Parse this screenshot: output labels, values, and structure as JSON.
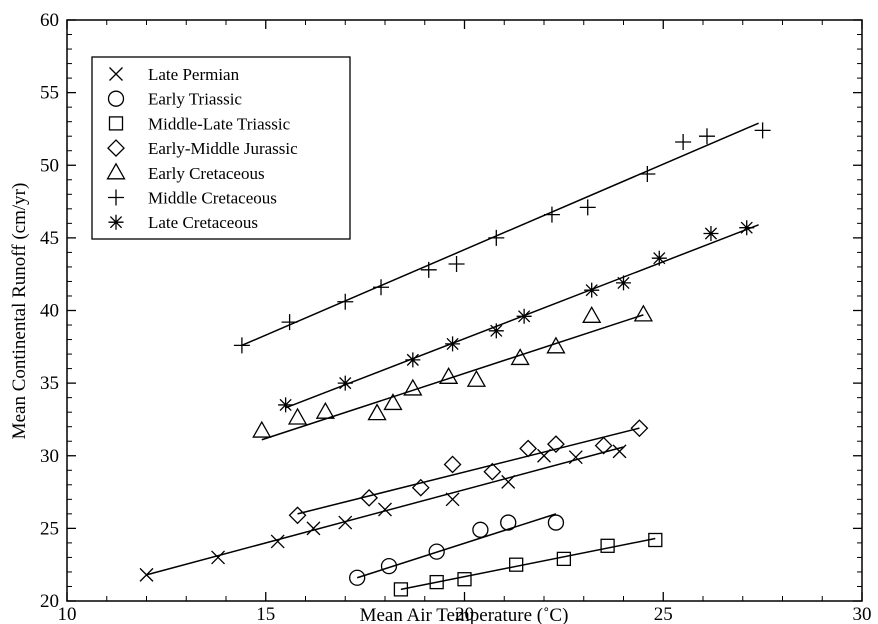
{
  "chart_data": {
    "type": "scatter",
    "xlabel": "Mean Air Temperature (˚C)",
    "ylabel": "Mean Continental Runoff (cm/yr)",
    "xlim": [
      10,
      30
    ],
    "ylim": [
      20,
      60
    ],
    "x_ticks": [
      "10",
      "15",
      "20",
      "25",
      "30"
    ],
    "y_ticks": [
      "20",
      "25",
      "30",
      "35",
      "40",
      "45",
      "50",
      "55",
      "60"
    ],
    "grid": false,
    "legend_position": "top-left",
    "series": [
      {
        "name": "Late Permian",
        "marker": "x",
        "points": [
          [
            12.0,
            21.8
          ],
          [
            13.8,
            23.0
          ],
          [
            15.3,
            24.1
          ],
          [
            16.2,
            25.0
          ],
          [
            17.0,
            25.4
          ],
          [
            18.0,
            26.3
          ],
          [
            19.7,
            27.0
          ],
          [
            21.1,
            28.2
          ],
          [
            22.0,
            30.0
          ],
          [
            22.8,
            29.9
          ],
          [
            23.9,
            30.3
          ]
        ],
        "fit": [
          [
            12.0,
            21.8
          ],
          [
            24.0,
            30.6
          ]
        ]
      },
      {
        "name": "Early Triassic",
        "marker": "circle",
        "points": [
          [
            17.3,
            21.6
          ],
          [
            18.1,
            22.4
          ],
          [
            19.3,
            23.4
          ],
          [
            20.4,
            24.9
          ],
          [
            21.1,
            25.4
          ],
          [
            22.3,
            25.4
          ]
        ],
        "fit": [
          [
            17.3,
            21.6
          ],
          [
            22.3,
            26.0
          ]
        ]
      },
      {
        "name": "Middle-Late Triassic",
        "marker": "square",
        "points": [
          [
            18.4,
            20.8
          ],
          [
            19.3,
            21.3
          ],
          [
            20.0,
            21.5
          ],
          [
            21.3,
            22.5
          ],
          [
            22.5,
            22.9
          ],
          [
            23.6,
            23.8
          ],
          [
            24.8,
            24.2
          ]
        ],
        "fit": [
          [
            18.4,
            20.8
          ],
          [
            24.8,
            24.3
          ]
        ]
      },
      {
        "name": "Early-Middle Jurassic",
        "marker": "diamond",
        "points": [
          [
            15.8,
            25.9
          ],
          [
            17.6,
            27.1
          ],
          [
            18.9,
            27.8
          ],
          [
            19.7,
            29.4
          ],
          [
            20.7,
            28.9
          ],
          [
            21.6,
            30.5
          ],
          [
            22.3,
            30.8
          ],
          [
            23.5,
            30.7
          ],
          [
            24.4,
            31.9
          ]
        ],
        "fit": [
          [
            15.8,
            26.0
          ],
          [
            24.4,
            31.9
          ]
        ]
      },
      {
        "name": "Early Cretaceous",
        "marker": "triangle",
        "points": [
          [
            14.9,
            31.7
          ],
          [
            15.8,
            32.6
          ],
          [
            16.5,
            33.0
          ],
          [
            17.8,
            32.9
          ],
          [
            18.2,
            33.6
          ],
          [
            18.7,
            34.6
          ],
          [
            19.6,
            35.4
          ],
          [
            20.3,
            35.2
          ],
          [
            21.4,
            36.7
          ],
          [
            22.3,
            37.5
          ],
          [
            23.2,
            39.6
          ],
          [
            24.5,
            39.7
          ]
        ],
        "fit": [
          [
            14.9,
            31.1
          ],
          [
            24.5,
            39.7
          ]
        ]
      },
      {
        "name": "Middle Cretaceous",
        "marker": "plus",
        "points": [
          [
            14.4,
            37.6
          ],
          [
            15.6,
            39.2
          ],
          [
            17.0,
            40.6
          ],
          [
            17.9,
            41.6
          ],
          [
            19.1,
            42.8
          ],
          [
            19.8,
            43.2
          ],
          [
            20.8,
            45.0
          ],
          [
            22.2,
            46.6
          ],
          [
            23.1,
            47.1
          ],
          [
            24.6,
            49.4
          ],
          [
            25.5,
            51.6
          ],
          [
            26.1,
            52.0
          ],
          [
            27.5,
            52.4
          ]
        ],
        "fit": [
          [
            14.4,
            37.6
          ],
          [
            27.4,
            52.9
          ]
        ]
      },
      {
        "name": "Late Cretaceous",
        "marker": "asterisk",
        "points": [
          [
            15.5,
            33.5
          ],
          [
            17.0,
            35.0
          ],
          [
            18.7,
            36.6
          ],
          [
            19.7,
            37.7
          ],
          [
            20.8,
            38.6
          ],
          [
            21.5,
            39.6
          ],
          [
            23.2,
            41.4
          ],
          [
            24.0,
            41.9
          ],
          [
            24.9,
            43.6
          ],
          [
            26.2,
            45.3
          ],
          [
            27.1,
            45.7
          ]
        ],
        "fit": [
          [
            15.5,
            33.3
          ],
          [
            27.4,
            45.9
          ]
        ]
      }
    ]
  }
}
